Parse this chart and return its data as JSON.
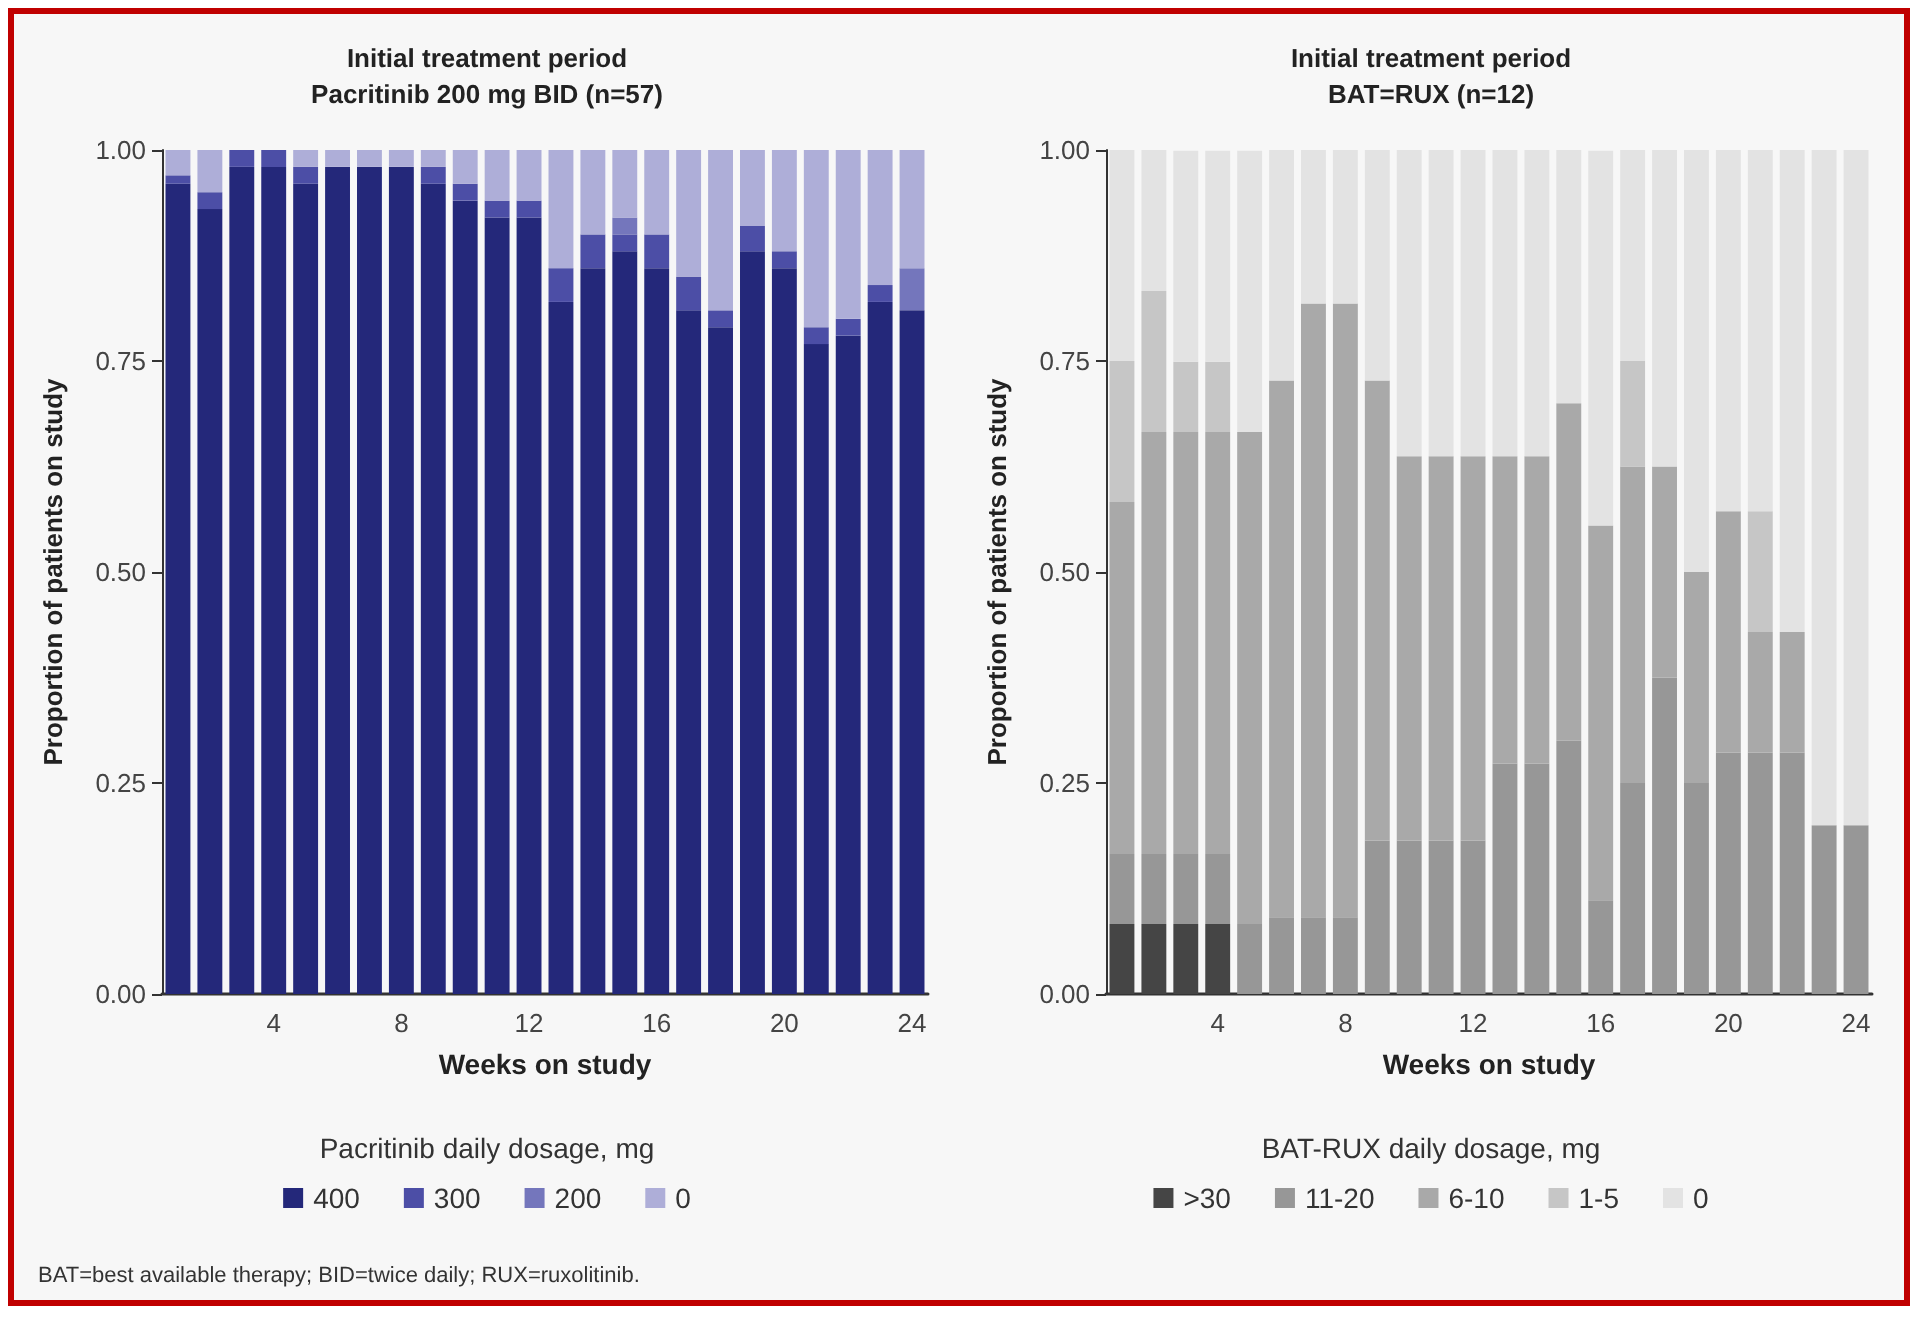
{
  "chart_data": [
    {
      "type": "bar",
      "title": "Initial treatment period\nPacritinib 200 mg BID (n=57)",
      "xlabel": "Weeks on study",
      "ylabel": "Proportion of patients on study",
      "legend_title": "Pacritinib daily dosage, mg",
      "stacked": true,
      "legend": "bottom",
      "grid": false,
      "categories": [
        null,
        null,
        null,
        "4",
        null,
        null,
        null,
        "8",
        null,
        null,
        null,
        "12",
        null,
        null,
        null,
        "16",
        null,
        null,
        null,
        "20",
        null,
        null,
        null,
        "24"
      ],
      "ylim": [
        0,
        1
      ],
      "yticks": [
        {
          "value": 0,
          "label": "0.00"
        },
        {
          "value": 0.25,
          "label": "0.25"
        },
        {
          "value": 0.5,
          "label": "0.50"
        },
        {
          "value": 0.75,
          "label": "0.75"
        },
        {
          "value": 1,
          "label": "1.00"
        }
      ],
      "series": [
        {
          "name": "400",
          "color": "#24287a",
          "values": [
            0.96,
            0.93,
            0.98,
            0.98,
            0.96,
            0.98,
            0.98,
            0.98,
            0.96,
            0.94,
            0.92,
            0.92,
            0.82,
            0.86,
            0.88,
            0.86,
            0.81,
            0.79,
            0.88,
            0.86,
            0.77,
            0.78,
            0.82,
            0.81
          ]
        },
        {
          "name": "300",
          "color": "#4c4ea6",
          "values": [
            0.01,
            0.02,
            0.02,
            0.02,
            0.02,
            0,
            0,
            0,
            0.02,
            0.02,
            0.02,
            0.02,
            0.04,
            0.04,
            0.02,
            0.04,
            0.04,
            0.02,
            0.03,
            0.02,
            0.02,
            0.02,
            0.02,
            0
          ]
        },
        {
          "name": "200",
          "color": "#7476bc",
          "values": [
            0,
            0,
            0,
            0,
            0,
            0,
            0,
            0,
            0,
            0,
            0,
            0,
            0,
            0,
            0.02,
            0,
            0,
            0,
            0,
            0,
            0,
            0,
            0,
            0.05
          ]
        },
        {
          "name": "0",
          "color": "#aeaed8",
          "values": [
            0.03,
            0.05,
            0,
            0,
            0.02,
            0.02,
            0.02,
            0.02,
            0.02,
            0.04,
            0.06,
            0.06,
            0.14,
            0.1,
            0.08,
            0.1,
            0.15,
            0.19,
            0.09,
            0.12,
            0.21,
            0.2,
            0.16,
            0.14
          ]
        }
      ],
      "annotations": [
        "BAT=best available therapy; BID=twice daily; RUX=ruxolitinib."
      ]
    },
    {
      "type": "bar",
      "title": "Initial treatment period\nBAT=RUX (n=12)",
      "xlabel": "Weeks on study",
      "ylabel": "Proportion of patients on study",
      "legend_title": "BAT-RUX daily dosage, mg",
      "stacked": true,
      "legend": "bottom",
      "grid": false,
      "categories": [
        null,
        null,
        null,
        "4",
        null,
        null,
        null,
        "8",
        null,
        null,
        null,
        "12",
        null,
        null,
        null,
        "16",
        null,
        null,
        null,
        "20",
        null,
        null,
        null,
        "24"
      ],
      "ylim": [
        0,
        1
      ],
      "yticks": [
        {
          "value": 0,
          "label": "0.00"
        },
        {
          "value": 0.25,
          "label": "0.25"
        },
        {
          "value": 0.5,
          "label": "0.50"
        },
        {
          "value": 0.75,
          "label": "0.75"
        },
        {
          "value": 1,
          "label": "1.00"
        }
      ],
      "series": [
        {
          "name": ">30",
          "color": "#454545",
          "values": [
            0.083,
            0.083,
            0.083,
            0.083,
            0,
            0,
            0,
            0,
            0,
            0,
            0,
            0,
            0,
            0,
            0,
            0,
            0,
            0,
            0,
            0,
            0,
            0,
            0,
            0
          ]
        },
        {
          "name": "11-20",
          "color": "#979797",
          "values": [
            0.083,
            0.083,
            0.083,
            0.083,
            0.083,
            0.091,
            0.091,
            0.091,
            0.182,
            0.182,
            0.182,
            0.182,
            0.273,
            0.273,
            0.3,
            0.111,
            0.25,
            0.375,
            0.25,
            0.286,
            0.286,
            0.286,
            0.2,
            0.2
          ]
        },
        {
          "name": "6-10",
          "color": "#a9a9a9",
          "values": [
            0.417,
            0.5,
            0.5,
            0.5,
            0.583,
            0.636,
            0.727,
            0.727,
            0.545,
            0.455,
            0.455,
            0.455,
            0.364,
            0.364,
            0.4,
            0.444,
            0.375,
            0.25,
            0.25,
            0.286,
            0.143,
            0.143,
            0,
            0
          ]
        },
        {
          "name": "1-5",
          "color": "#c6c6c6",
          "values": [
            0.167,
            0.167,
            0.083,
            0.083,
            0,
            0,
            0,
            0,
            0,
            0,
            0,
            0,
            0,
            0,
            0,
            0,
            0.125,
            0,
            0,
            0,
            0.143,
            0,
            0,
            0
          ]
        },
        {
          "name": "0",
          "color": "#e3e3e3",
          "values": [
            0.25,
            0.167,
            0.25,
            0.25,
            0.333,
            0.273,
            0.182,
            0.182,
            0.273,
            0.364,
            0.364,
            0.364,
            0.364,
            0.364,
            0.3,
            0.444,
            0.25,
            0.375,
            0.5,
            0.429,
            0.429,
            0.571,
            0.8,
            0.8
          ]
        }
      ]
    }
  ]
}
